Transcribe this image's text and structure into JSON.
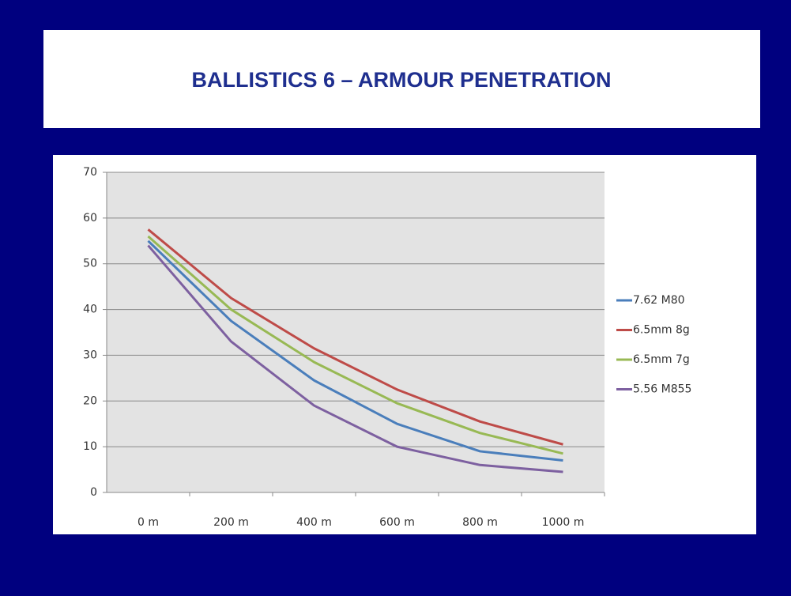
{
  "chart_data": {
    "type": "line",
    "title": "BALLISTICS 6 – ARMOUR PENETRATION",
    "categories": [
      "0 m",
      "200 m",
      "400 m",
      "600 m",
      "800 m",
      "1000 m"
    ],
    "series": [
      {
        "name": "7.62 M80",
        "color": "#4a7ebb",
        "values": [
          55,
          37.5,
          24.5,
          15,
          9,
          7
        ]
      },
      {
        "name": "6.5mm 8g",
        "color": "#be4b48",
        "values": [
          57.5,
          42.5,
          31.5,
          22.5,
          15.5,
          10.5
        ]
      },
      {
        "name": "6.5mm 7g",
        "color": "#98b954",
        "values": [
          56,
          40,
          28.5,
          19.5,
          13,
          8.5
        ]
      },
      {
        "name": "5.56 M855",
        "color": "#7d60a0",
        "values": [
          54,
          33,
          19,
          10,
          6,
          4.5
        ]
      }
    ],
    "ylim": [
      0,
      70
    ],
    "yticks": [
      0,
      10,
      20,
      30,
      40,
      50,
      60,
      70
    ],
    "grid": true,
    "legend": "right"
  }
}
